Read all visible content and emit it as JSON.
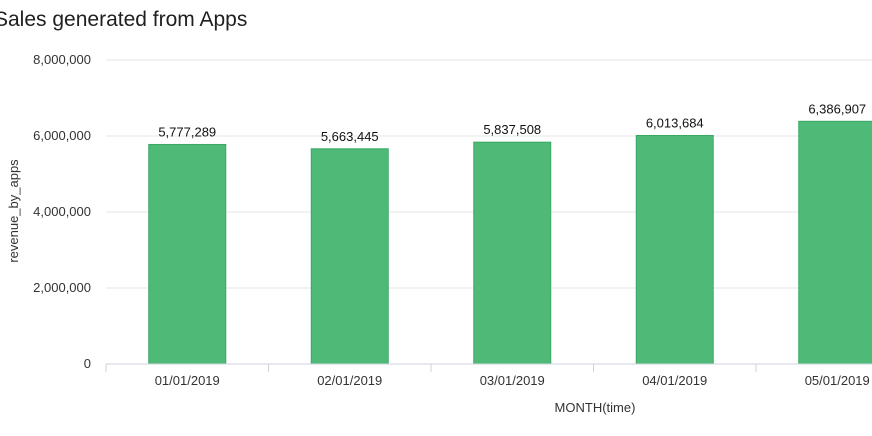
{
  "chart_data": {
    "type": "bar",
    "title": "Sales generated from Apps",
    "xlabel": "MONTH(time)",
    "ylabel": "revenue_by_apps",
    "categories": [
      "01/01/2019",
      "02/01/2019",
      "03/01/2019",
      "04/01/2019",
      "05/01/2019"
    ],
    "values": [
      5777289,
      5663445,
      5837508,
      6013684,
      6386907
    ],
    "data_labels": [
      "5,777,289",
      "5,663,445",
      "5,837,508",
      "6,013,684",
      "6,386,907"
    ],
    "ylim": [
      0,
      8000000
    ],
    "yticks": [
      0,
      2000000,
      4000000,
      6000000,
      8000000
    ],
    "ytick_labels": [
      "0",
      "2,000,000",
      "4,000,000",
      "6,000,000",
      "8,000,000"
    ],
    "grid": true,
    "bar_color": "#4fba77",
    "bar_edge_color": "#3aa863"
  }
}
